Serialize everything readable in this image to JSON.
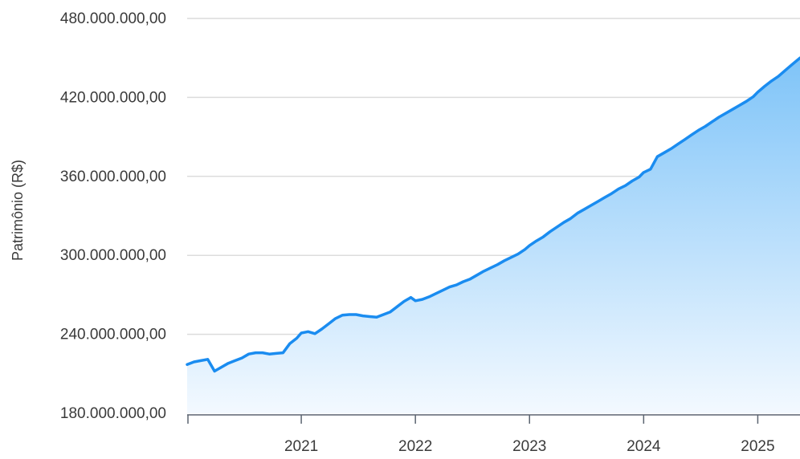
{
  "colors": {
    "line": "#1a8cf0",
    "area_top": "#7fc4f8",
    "area_bottom": "#f3f9ff",
    "grid": "#dcdcdc",
    "axis": "#5b6470"
  },
  "chart_data": {
    "type": "area",
    "title": "",
    "xlabel": "",
    "ylabel": "Patrimônio (R$)",
    "grid": true,
    "legend": "none",
    "xlim": [
      2020.0,
      2025.37
    ],
    "ylim": [
      180000000,
      480000000
    ],
    "yticks": [
      180000000,
      240000000,
      300000000,
      360000000,
      420000000,
      480000000
    ],
    "ytick_labels": [
      "180.000.000,00",
      "240.000.000,00",
      "300.000.000,00",
      "360.000.000,00",
      "420.000.000,00",
      "480.000.000,00"
    ],
    "xticks": [
      2020,
      2021,
      2022,
      2023,
      2024,
      2025
    ],
    "xtick_labels": [
      "",
      "2021",
      "2022",
      "2023",
      "2024",
      "2025"
    ],
    "series": [
      {
        "x": [
          2020.0,
          2020.06,
          2020.12,
          2020.18,
          2020.24,
          2020.3,
          2020.36,
          2020.42,
          2020.48,
          2020.54,
          2020.6,
          2020.66,
          2020.72,
          2020.78,
          2020.84,
          2020.9,
          2020.96,
          2021.0,
          2021.06,
          2021.12,
          2021.18,
          2021.24,
          2021.3,
          2021.36,
          2021.42,
          2021.48,
          2021.54,
          2021.6,
          2021.66,
          2021.72,
          2021.78,
          2021.84,
          2021.9,
          2021.96,
          2022.0,
          2022.06,
          2022.12,
          2022.18,
          2022.24,
          2022.3,
          2022.36,
          2022.42,
          2022.48,
          2022.54,
          2022.6,
          2022.66,
          2022.72,
          2022.78,
          2022.84,
          2022.9,
          2022.96,
          2023.0,
          2023.06,
          2023.12,
          2023.18,
          2023.24,
          2023.3,
          2023.36,
          2023.42,
          2023.48,
          2023.54,
          2023.6,
          2023.66,
          2023.72,
          2023.78,
          2023.84,
          2023.9,
          2023.96,
          2024.0,
          2024.06,
          2024.12,
          2024.18,
          2024.24,
          2024.3,
          2024.36,
          2024.42,
          2024.48,
          2024.54,
          2024.6,
          2024.66,
          2024.72,
          2024.78,
          2024.84,
          2024.9,
          2024.96,
          2025.0,
          2025.06,
          2025.12,
          2025.18,
          2025.24,
          2025.3,
          2025.37
        ],
        "values": [
          217000000,
          219000000,
          220000000,
          221000000,
          212000000,
          215000000,
          218000000,
          220000000,
          222000000,
          225000000,
          226000000,
          226000000,
          225000000,
          225500000,
          226000000,
          233000000,
          237000000,
          241000000,
          242000000,
          240500000,
          244000000,
          248000000,
          252000000,
          254500000,
          255000000,
          255000000,
          254000000,
          253500000,
          253000000,
          255000000,
          257000000,
          261000000,
          265000000,
          268000000,
          265500000,
          266500000,
          268500000,
          271000000,
          273500000,
          276000000,
          277500000,
          280000000,
          282000000,
          285000000,
          288000000,
          290500000,
          293000000,
          296000000,
          298500000,
          301000000,
          304500000,
          307500000,
          311000000,
          314000000,
          318000000,
          321500000,
          325000000,
          328000000,
          332000000,
          335000000,
          338000000,
          341000000,
          344000000,
          347000000,
          350500000,
          353000000,
          356500000,
          359500000,
          363000000,
          365500000,
          375000000,
          378000000,
          381000000,
          384500000,
          388000000,
          391500000,
          395000000,
          398000000,
          401500000,
          405000000,
          408000000,
          411000000,
          414000000,
          417000000,
          420500000,
          424000000,
          428500000,
          432500000,
          436000000,
          440500000,
          445000000,
          450000000
        ]
      }
    ]
  }
}
